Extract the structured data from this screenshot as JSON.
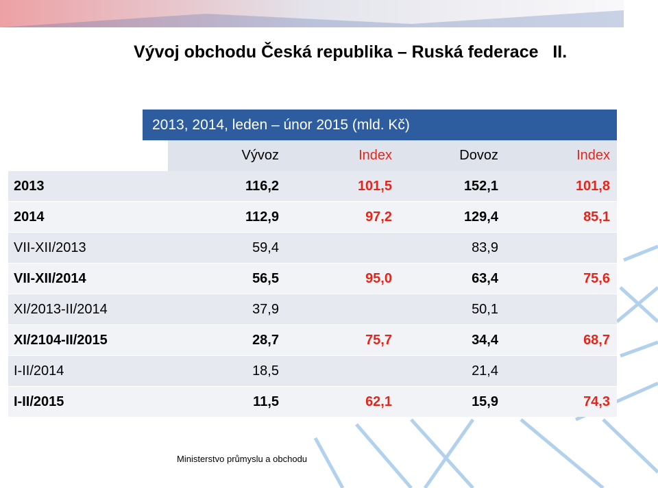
{
  "header": {
    "title": "Vývoj obchodu Česká republika – Ruská federace   II."
  },
  "table": {
    "caption": "2013, 2014, leden – únor 2015 (mld. Kč)",
    "columns": [
      "Vývoz",
      "Index",
      "Dovoz",
      "Index"
    ],
    "rows": [
      [
        "2013",
        "116,2",
        "101,5",
        "152,1",
        "101,8"
      ],
      [
        "2014",
        "112,9",
        "97,2",
        "129,4",
        "85,1"
      ],
      [
        "VII-XII/2013",
        "59,4",
        null,
        "83,9",
        null
      ],
      [
        "VII-XII/2014",
        "56,5",
        "95,0",
        "63,4",
        "75,6"
      ],
      [
        "XI/2013-II/2014",
        "37,9",
        null,
        "50,1",
        null
      ],
      [
        "XI/2104-II/2015",
        "28,7",
        "75,7",
        "34,4",
        "68,7"
      ],
      [
        "I-II/2014",
        "18,5",
        null,
        "21,4",
        null
      ],
      [
        "I-II/2015",
        "11,5",
        "62,1",
        "15,9",
        "74,3"
      ]
    ]
  },
  "footer": {
    "text": "Ministerstvo průmyslu a obchodu"
  }
}
